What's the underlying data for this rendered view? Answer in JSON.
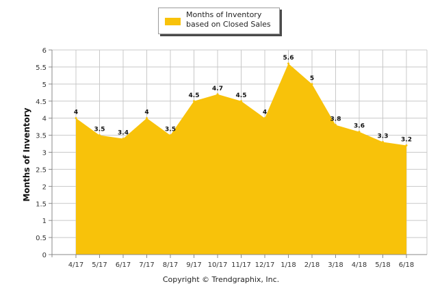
{
  "legend": {
    "label": "Months of Inventory based on Closed Sales"
  },
  "footer": {
    "copyright": "Copyright © Trendgraphix, Inc."
  },
  "colors": {
    "area": "#f8c20a",
    "grid": "#c8c8c8",
    "axis": "#888888"
  },
  "chart_data": {
    "type": "area",
    "title": "",
    "ylabel": "Months of Inventory",
    "xlabel": "",
    "ylim": [
      0,
      6
    ],
    "yticks": [
      "0",
      "0.5",
      "1",
      "1.5",
      "2",
      "2.5",
      "3",
      "3.5",
      "4",
      "4.5",
      "5",
      "5.5",
      "6"
    ],
    "grid": true,
    "legend_position": "top-center",
    "categories": [
      "4/17",
      "5/17",
      "6/17",
      "7/17",
      "8/17",
      "9/17",
      "10/17",
      "11/17",
      "12/17",
      "1/18",
      "2/18",
      "3/18",
      "4/18",
      "5/18",
      "6/18"
    ],
    "series": [
      {
        "name": "Months of Inventory based on Closed Sales",
        "values": [
          4,
          3.5,
          3.4,
          4,
          3.5,
          4.5,
          4.7,
          4.5,
          4,
          5.6,
          5,
          3.8,
          3.6,
          3.3,
          3.2
        ],
        "labels": [
          "4",
          "3.5",
          "3.4",
          "4",
          "3.5",
          "4.5",
          "4.7",
          "4.5",
          "4",
          "5.6",
          "5",
          "3.8",
          "3.6",
          "3.3",
          "3.2"
        ]
      }
    ]
  }
}
